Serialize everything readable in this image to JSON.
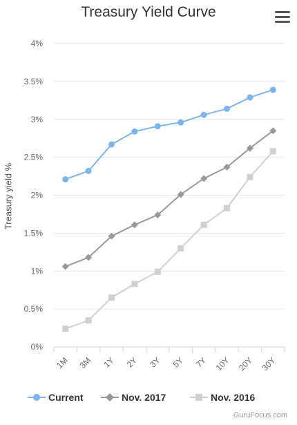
{
  "header": {
    "title": "Treasury Yield Curve",
    "menu_icon": "hamburger-menu-icon"
  },
  "credit": "GuruFocus.com",
  "chart_data": {
    "type": "line",
    "title": "Treasury Yield Curve",
    "xlabel": "",
    "ylabel": "Treasury yield %",
    "categories": [
      "1M",
      "3M",
      "1Y",
      "2Y",
      "3Y",
      "5Y",
      "7Y",
      "10Y",
      "20Y",
      "30Y"
    ],
    "ylim": [
      0,
      4
    ],
    "yticks": [
      0,
      0.5,
      1,
      1.5,
      2,
      2.5,
      3,
      3.5,
      4
    ],
    "ytick_labels": [
      "0%",
      "0.5%",
      "1%",
      "1.5%",
      "2%",
      "2.5%",
      "3%",
      "3.5%",
      "4%"
    ],
    "grid": true,
    "legend_position": "bottom",
    "series": [
      {
        "name": "Current",
        "color": "#7cb5ec",
        "marker": "circle",
        "values": [
          2.21,
          2.32,
          2.67,
          2.84,
          2.91,
          2.96,
          3.06,
          3.14,
          3.29,
          3.39
        ]
      },
      {
        "name": "Nov. 2017",
        "color": "#999999",
        "marker": "diamond",
        "values": [
          1.06,
          1.18,
          1.46,
          1.61,
          1.74,
          2.01,
          2.22,
          2.37,
          2.62,
          2.85
        ]
      },
      {
        "name": "Nov. 2016",
        "color": "#d0d0d0",
        "marker": "square",
        "values": [
          0.24,
          0.35,
          0.65,
          0.83,
          0.99,
          1.3,
          1.61,
          1.83,
          2.24,
          2.58
        ]
      }
    ]
  }
}
